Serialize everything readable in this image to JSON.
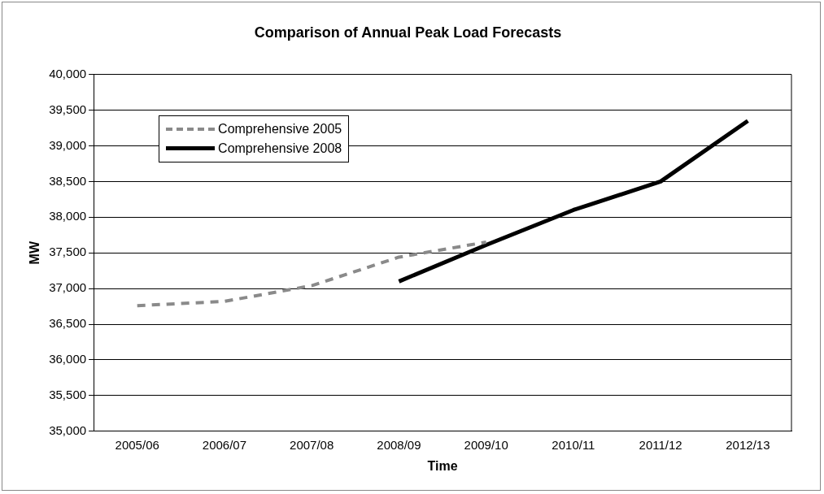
{
  "chart_data": {
    "type": "line",
    "title": "Comparison of Annual Peak Load Forecasts",
    "xlabel": "Time",
    "ylabel": "MW",
    "categories": [
      "2005/06",
      "2006/07",
      "2007/08",
      "2008/09",
      "2009/10",
      "2010/11",
      "2011/12",
      "2012/13"
    ],
    "series": [
      {
        "name": "Comprehensive 2005",
        "color": "#8a8a8a",
        "line_style": "dashed",
        "values": [
          36760,
          36820,
          37040,
          37440,
          37650,
          null,
          null,
          null
        ]
      },
      {
        "name": "Comprehensive 2008",
        "color": "#000000",
        "line_style": "solid",
        "values": [
          null,
          null,
          null,
          37100,
          37610,
          38100,
          38500,
          39350
        ]
      }
    ],
    "ylim": [
      35000,
      40000
    ],
    "yticks": [
      {
        "value": 35000,
        "label": "35,000"
      },
      {
        "value": 35500,
        "label": "35,500"
      },
      {
        "value": 36000,
        "label": "36,000"
      },
      {
        "value": 36500,
        "label": "36,500"
      },
      {
        "value": 37000,
        "label": "37,000"
      },
      {
        "value": 37500,
        "label": "37,500"
      },
      {
        "value": 38000,
        "label": "38,000"
      },
      {
        "value": 38500,
        "label": "38,500"
      },
      {
        "value": 39000,
        "label": "39,000"
      },
      {
        "value": 39500,
        "label": "39,500"
      },
      {
        "value": 40000,
        "label": "40,000"
      }
    ],
    "grid": "y",
    "legend": "top left",
    "marker": "none"
  }
}
